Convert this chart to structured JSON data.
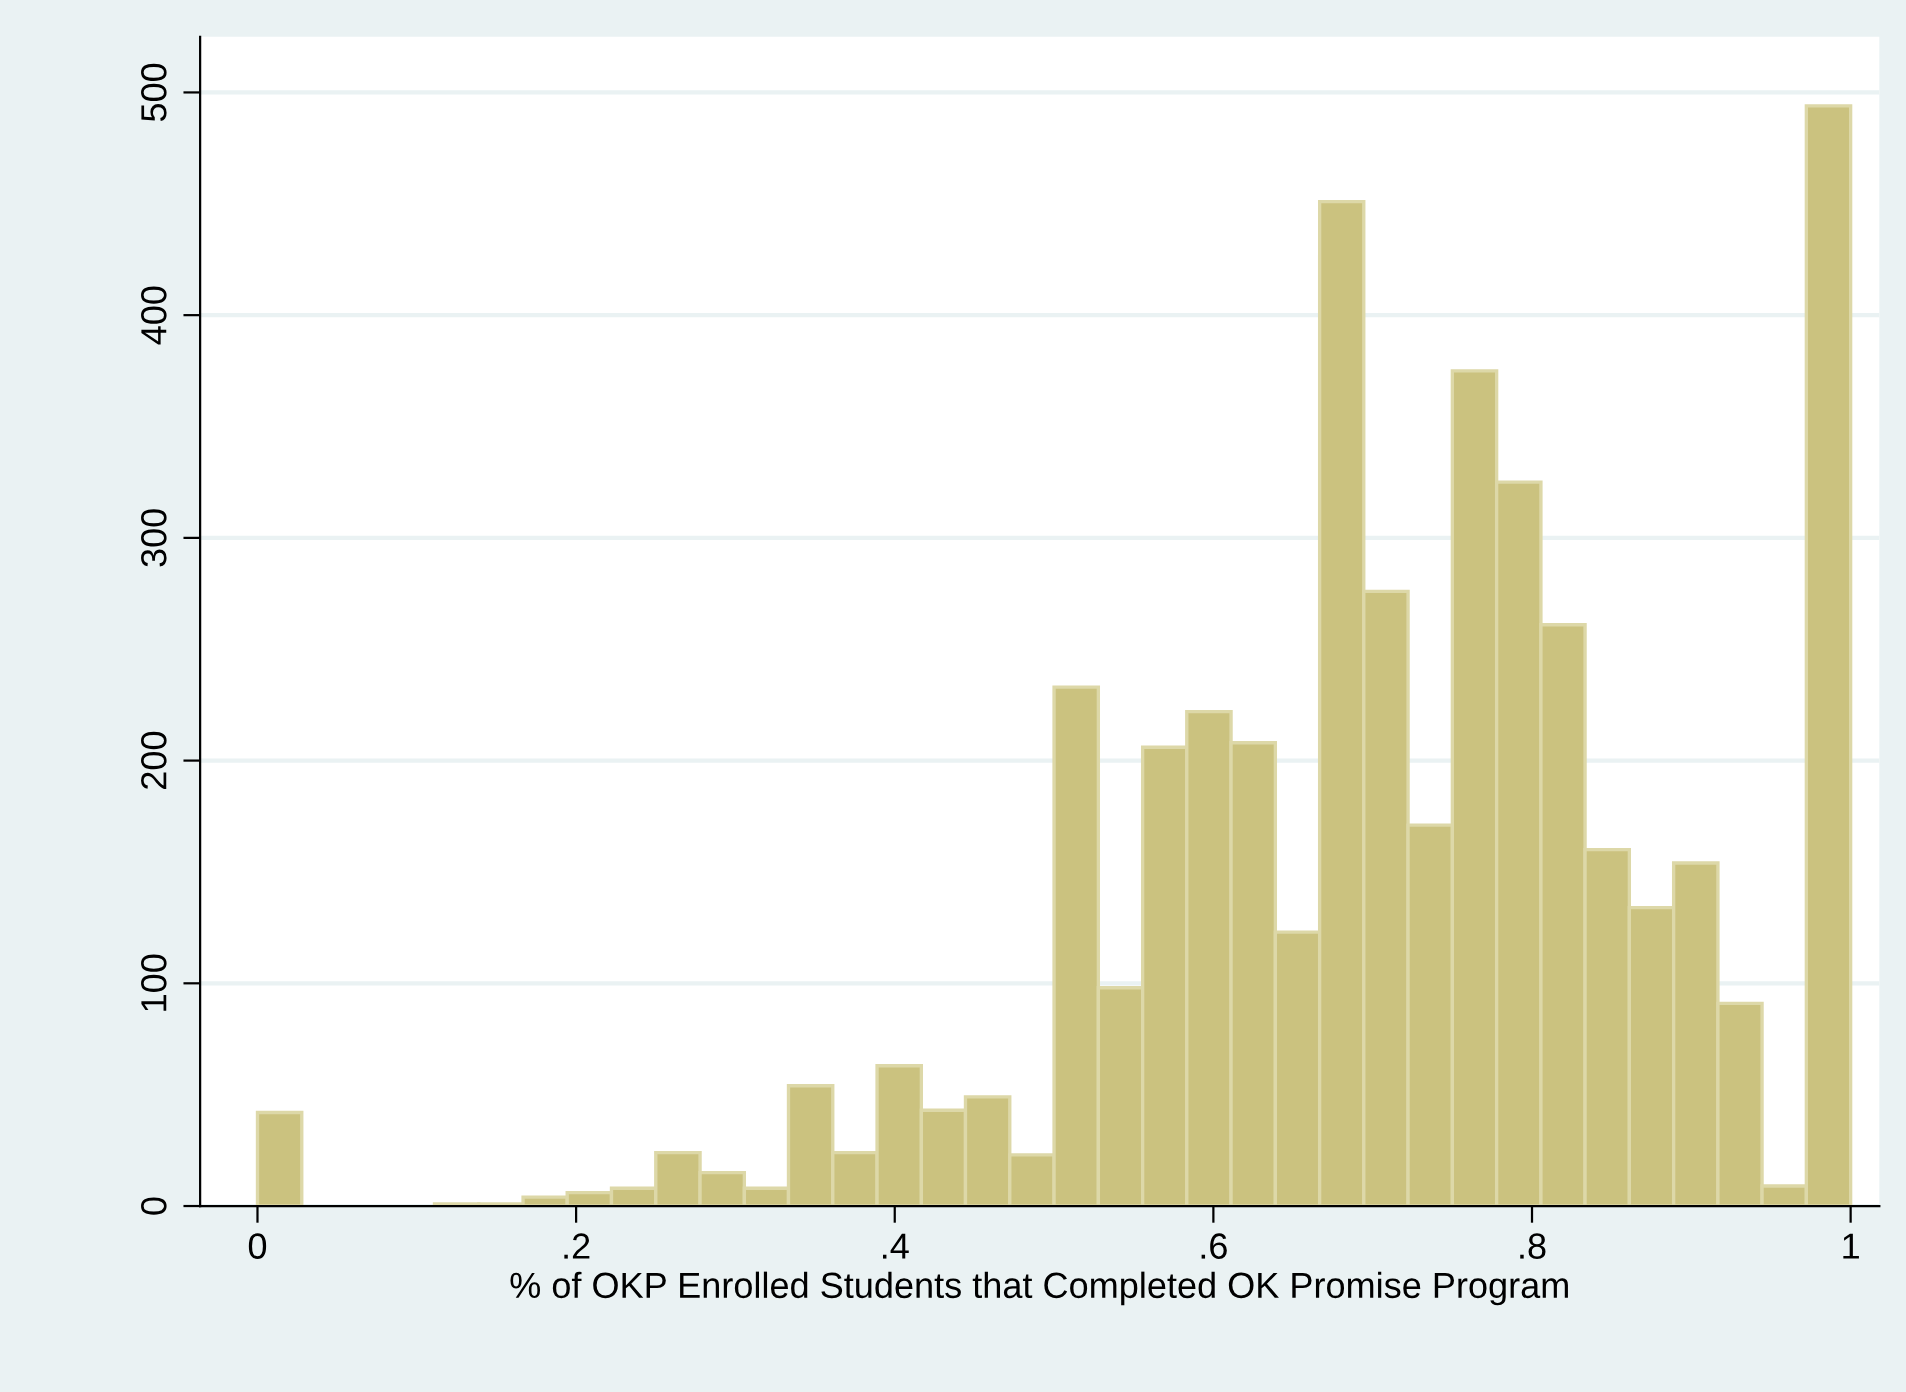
{
  "chart_data": {
    "type": "histogram",
    "xlabel": "% of OKP Enrolled Students that Completed OK Promise Program",
    "bins": [
      0,
      0.0278,
      0.0556,
      0.0833,
      0.1111,
      0.1389,
      0.1667,
      0.1944,
      0.2222,
      0.25,
      0.2778,
      0.3056,
      0.3333,
      0.3611,
      0.3889,
      0.4167,
      0.4444,
      0.4722,
      0.5,
      0.5278,
      0.5556,
      0.5833,
      0.6111,
      0.6389,
      0.6667,
      0.6944,
      0.7222,
      0.75,
      0.7778,
      0.8056,
      0.8333,
      0.8611,
      0.8889,
      0.9167,
      0.9444,
      0.9722,
      1
    ],
    "values": [
      42,
      0,
      0,
      0,
      1,
      1,
      4,
      6,
      8,
      24,
      15,
      8,
      54,
      24,
      63,
      43,
      49,
      23,
      233,
      98,
      206,
      222,
      208,
      123,
      451,
      276,
      171,
      375,
      325,
      261,
      160,
      134,
      154,
      91,
      9,
      494
    ],
    "color": "#cbc27f",
    "xlim": [
      -0.036,
      1.018
    ],
    "ylim": [
      0,
      525
    ],
    "xticks": [
      {
        "value": 0,
        "label": "0"
      },
      {
        "value": 0.2,
        "label": ".2"
      },
      {
        "value": 0.4,
        "label": ".4"
      },
      {
        "value": 0.6,
        "label": ".6"
      },
      {
        "value": 0.8,
        "label": ".8"
      },
      {
        "value": 1,
        "label": "1"
      }
    ],
    "yticks": [
      0,
      100,
      200,
      300,
      400,
      500
    ],
    "grid": "y"
  }
}
